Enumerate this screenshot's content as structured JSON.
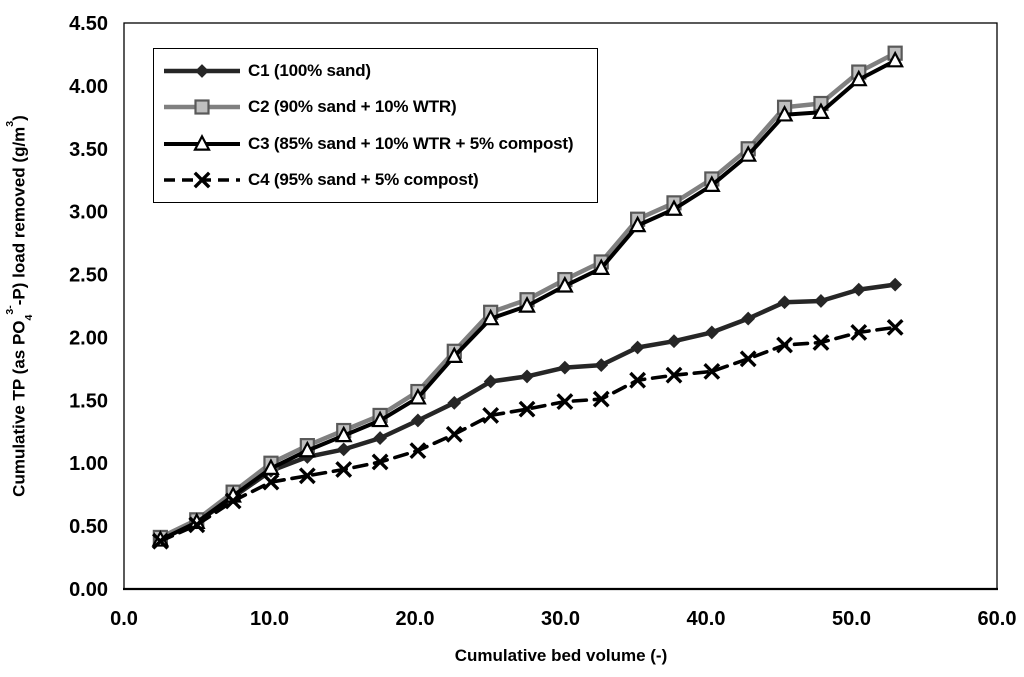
{
  "chart_data": {
    "type": "line",
    "title": "",
    "xlabel": "Cumulative bed volume (-)",
    "ylabel": "Cumulative TP (as PO4 3- -P) load removed (g/m3)",
    "ylabel_parts": [
      {
        "t": "text",
        "v": "Cumulative TP (as PO"
      },
      {
        "t": "sub",
        "v": "4"
      },
      {
        "t": "sup",
        "v": "3-"
      },
      {
        "t": "text",
        "v": "-P) load removed (g/m"
      },
      {
        "t": "sup",
        "v": "3"
      },
      {
        "t": "text",
        "v": ")"
      }
    ],
    "xlim": [
      0,
      60
    ],
    "ylim": [
      0,
      4.5
    ],
    "x_tick_labels": [
      "0.0",
      "10.0",
      "20.0",
      "30.0",
      "40.0",
      "50.0",
      "60.0"
    ],
    "x_tick_values": [
      0,
      10,
      20,
      30,
      40,
      50,
      60
    ],
    "y_tick_labels": [
      "0.00",
      "0.50",
      "1.00",
      "1.50",
      "2.00",
      "2.50",
      "3.00",
      "3.50",
      "4.00",
      "4.50"
    ],
    "y_tick_values": [
      0,
      0.5,
      1.0,
      1.5,
      2.0,
      2.5,
      3.0,
      3.5,
      4.0,
      4.5
    ],
    "grid": false,
    "legend_position": "top-left-inside",
    "background": "#FFFFFF",
    "axis_color": "#000000",
    "x": [
      2.5,
      5.0,
      7.5,
      10.1,
      12.6,
      15.1,
      17.6,
      20.2,
      22.7,
      25.2,
      27.7,
      30.3,
      32.8,
      35.3,
      37.8,
      40.4,
      42.9,
      45.4,
      47.9,
      50.5,
      53.0
    ],
    "series": [
      {
        "id": "c1",
        "name": "C1 (100% sand)",
        "marker": "diamond",
        "dash": "solid",
        "line_color": "#262626",
        "line_width": 4.5,
        "marker_fill": "#262626",
        "marker_stroke": "#262626",
        "values": [
          0.4,
          0.53,
          0.73,
          0.94,
          1.05,
          1.11,
          1.2,
          1.34,
          1.48,
          1.65,
          1.69,
          1.76,
          1.78,
          1.92,
          1.97,
          2.04,
          2.15,
          2.28,
          2.29,
          2.38,
          2.42
        ]
      },
      {
        "id": "c2",
        "name": "C2 (90% sand + 10% WTR)",
        "marker": "square",
        "dash": "solid",
        "line_color": "#808080",
        "line_width": 4.5,
        "marker_fill": "#BFBFBF",
        "marker_stroke": "#595959",
        "values": [
          0.41,
          0.55,
          0.77,
          1.0,
          1.14,
          1.26,
          1.38,
          1.57,
          1.89,
          2.2,
          2.3,
          2.46,
          2.6,
          2.94,
          3.07,
          3.26,
          3.5,
          3.83,
          3.86,
          4.11,
          4.26
        ]
      },
      {
        "id": "c3",
        "name": "C3 (85% sand + 10% WTR + 5% compost)",
        "marker": "triangle",
        "dash": "solid",
        "line_color": "#000000",
        "line_width": 4,
        "marker_fill": "#FFFFFF",
        "marker_stroke": "#000000",
        "values": [
          0.39,
          0.53,
          0.74,
          0.96,
          1.1,
          1.22,
          1.34,
          1.52,
          1.85,
          2.15,
          2.25,
          2.41,
          2.55,
          2.89,
          3.02,
          3.21,
          3.45,
          3.77,
          3.79,
          4.05,
          4.2
        ]
      },
      {
        "id": "c4",
        "name": "C4 (95% sand + 5% compost)",
        "marker": "x",
        "dash": "dashed",
        "line_color": "#000000",
        "line_width": 3.6,
        "marker_fill": "#000000",
        "marker_stroke": "#000000",
        "values": [
          0.38,
          0.51,
          0.7,
          0.85,
          0.9,
          0.95,
          1.01,
          1.1,
          1.23,
          1.38,
          1.43,
          1.49,
          1.51,
          1.66,
          1.7,
          1.73,
          1.83,
          1.94,
          1.96,
          2.04,
          2.08
        ]
      }
    ]
  }
}
